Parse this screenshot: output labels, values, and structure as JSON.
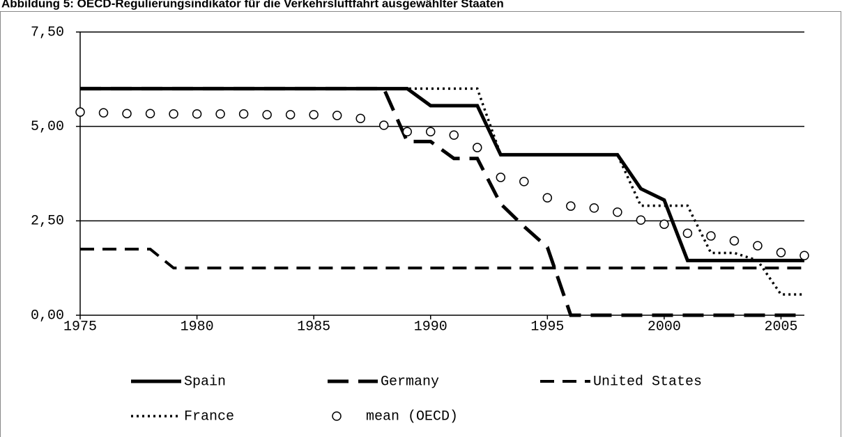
{
  "chart_data": {
    "type": "line",
    "title": "Abbildung 5: OECD-Regulierungsindikator für die Verkehrsluftfahrt ausgewählter Staaten",
    "x": [
      1975,
      1976,
      1977,
      1978,
      1979,
      1980,
      1981,
      1982,
      1983,
      1984,
      1985,
      1986,
      1987,
      1988,
      1989,
      1990,
      1991,
      1992,
      1993,
      1994,
      1995,
      1996,
      1997,
      1998,
      1999,
      2000,
      2001,
      2002,
      2003,
      2004,
      2005,
      2006
    ],
    "xlim": [
      1975,
      2006
    ],
    "xticks": [
      1975,
      1980,
      1985,
      1990,
      1995,
      2000,
      2005
    ],
    "ylim": [
      0,
      7.5
    ],
    "yticks": [
      {
        "value": 0,
        "label": "0,00"
      },
      {
        "value": 2.5,
        "label": "2,50"
      },
      {
        "value": 5,
        "label": "5,00"
      },
      {
        "value": 7.5,
        "label": "7,50"
      }
    ],
    "grid": true,
    "series": [
      {
        "name": "Spain",
        "color": "#000000",
        "style": "solid",
        "values": [
          6,
          6,
          6,
          6,
          6,
          6,
          6,
          6,
          6,
          6,
          6,
          6,
          6,
          6,
          6,
          5.55,
          5.55,
          5.55,
          4.25,
          4.25,
          4.25,
          4.25,
          4.25,
          4.25,
          3.35,
          3.05,
          1.45,
          1.45,
          1.45,
          1.45,
          1.45,
          1.45
        ]
      },
      {
        "name": "Germany",
        "color": "#000000",
        "style": "longdash",
        "values": [
          6,
          6,
          6,
          6,
          6,
          6,
          6,
          6,
          6,
          6,
          6,
          6,
          6,
          6,
          4.6,
          4.6,
          4.15,
          4.15,
          2.95,
          2.35,
          1.8,
          0,
          0,
          0,
          0,
          0,
          0,
          0,
          0,
          0,
          0,
          0
        ]
      },
      {
        "name": "United States",
        "color": "#000000",
        "style": "dash",
        "values": [
          1.75,
          1.75,
          1.75,
          1.75,
          1.25,
          1.25,
          1.25,
          1.25,
          1.25,
          1.25,
          1.25,
          1.25,
          1.25,
          1.25,
          1.25,
          1.25,
          1.25,
          1.25,
          1.25,
          1.25,
          1.25,
          1.25,
          1.25,
          1.25,
          1.25,
          1.25,
          1.25,
          1.25,
          1.25,
          1.25,
          1.25,
          1.25
        ]
      },
      {
        "name": "France",
        "color": "#000000",
        "style": "dotted",
        "values": [
          6,
          6,
          6,
          6,
          6,
          6,
          6,
          6,
          6,
          6,
          6,
          6,
          6,
          6,
          6,
          6,
          6,
          6,
          4.25,
          4.25,
          4.25,
          4.25,
          4.25,
          4.25,
          2.9,
          2.9,
          2.9,
          1.65,
          1.65,
          1.45,
          0.55,
          0.55
        ]
      },
      {
        "name": "mean (OECD)",
        "color": "#000000",
        "style": "marker",
        "values": [
          5.38,
          5.36,
          5.34,
          5.34,
          5.33,
          5.33,
          5.33,
          5.33,
          5.31,
          5.31,
          5.31,
          5.29,
          5.21,
          5.03,
          4.86,
          4.86,
          4.77,
          4.44,
          3.65,
          3.54,
          3.11,
          2.89,
          2.84,
          2.73,
          2.52,
          2.41,
          2.17,
          2.1,
          1.97,
          1.84,
          1.66,
          1.58
        ]
      }
    ]
  }
}
